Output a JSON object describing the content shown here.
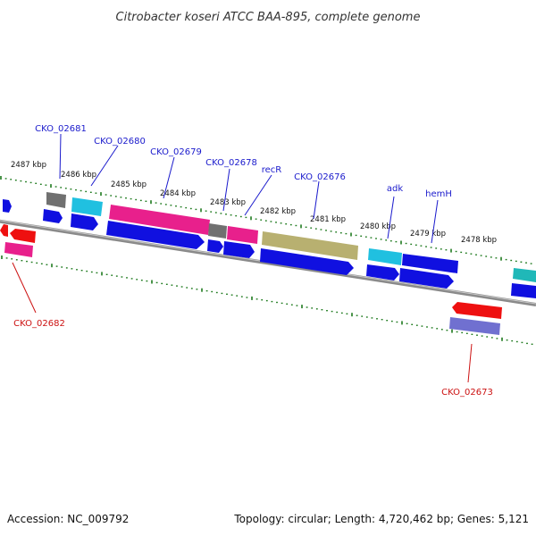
{
  "title": "Citrobacter koseri ATCC BAA-895, complete genome",
  "footer": {
    "accession": "Accession: NC_009792",
    "summary": "Topology: circular; Length: 4,720,462 bp; Genes: 5,121"
  },
  "colors": {
    "backbone": "#8a8a8a",
    "ticks": "#1e7a1e",
    "label_forward": "#1a1acc",
    "label_reverse": "#cc1111",
    "cds": "#1010e0",
    "gene_pink": "#e8208c",
    "gene_cyan": "#20c0e0",
    "gene_gray": "#707070",
    "gene_olive": "#b8b070",
    "gene_red": "#ee1010",
    "gene_purple": "#7070d0",
    "gene_teal": "#20b8b8"
  },
  "kbp_labels": [
    "2487 kbp",
    "2486 kbp",
    "2485 kbp",
    "2484 kbp",
    "2483 kbp",
    "2482 kbp",
    "2481 kbp",
    "2480 kbp",
    "2479 kbp",
    "2478 kbp"
  ],
  "gene_labels": [
    {
      "text": "CKO_02681",
      "strand": "forward"
    },
    {
      "text": "CKO_02680",
      "strand": "forward"
    },
    {
      "text": "CKO_02679",
      "strand": "forward"
    },
    {
      "text": "CKO_02678",
      "strand": "forward"
    },
    {
      "text": "recR",
      "strand": "forward"
    },
    {
      "text": "CKO_02676",
      "strand": "forward"
    },
    {
      "text": "adk",
      "strand": "forward"
    },
    {
      "text": "hemH",
      "strand": "forward"
    },
    {
      "text": "CKO_02682",
      "strand": "reverse"
    },
    {
      "text": "CKO_02673",
      "strand": "reverse"
    }
  ]
}
